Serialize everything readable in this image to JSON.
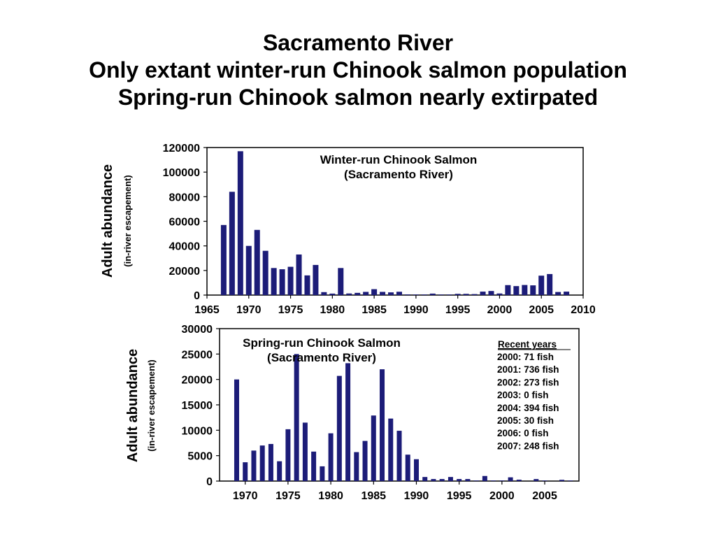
{
  "title_lines": [
    "Sacramento River",
    "Only extant winter-run Chinook salmon population",
    "Spring-run Chinook salmon nearly extirpated"
  ],
  "colors": {
    "bar": "#1c1c78",
    "axis": "#000000"
  },
  "chart_data": [
    {
      "type": "bar",
      "title_lines": [
        "Winter-run Chinook Salmon",
        "(Sacramento River)"
      ],
      "ylabel": "Adult abundance",
      "ylabel_sub": "(in-river escapement)",
      "xlabel": "",
      "xlim": [
        1965,
        2010
      ],
      "ylim": [
        0,
        120000
      ],
      "x_ticks": [
        1965,
        1970,
        1975,
        1980,
        1985,
        1990,
        1995,
        2000,
        2005,
        2010
      ],
      "y_ticks": [
        0,
        20000,
        40000,
        60000,
        80000,
        100000,
        120000
      ],
      "grid": false,
      "series": [
        {
          "x": [
            1967,
            1968,
            1969,
            1970,
            1971,
            1972,
            1973,
            1974,
            1975,
            1976,
            1977,
            1978,
            1979,
            1980,
            1981,
            1982,
            1983,
            1984,
            1985,
            1986,
            1987,
            1988,
            1989,
            1990,
            1991,
            1992,
            1993,
            1994,
            1995,
            1996,
            1997,
            1998,
            1999,
            2000,
            2001,
            2002,
            2003,
            2004,
            2005,
            2006,
            2007,
            2008
          ],
          "values": [
            57000,
            84000,
            117000,
            40000,
            53000,
            36000,
            22000,
            21000,
            23000,
            33000,
            16000,
            24500,
            2400,
            1200,
            22000,
            1300,
            1800,
            2600,
            4800,
            2600,
            2200,
            2700,
            550,
            450,
            200,
            1200,
            300,
            200,
            1000,
            1000,
            800,
            2800,
            3300,
            1300,
            8100,
            7300,
            8200,
            7900,
            15800,
            17100,
            2500,
            2800
          ]
        }
      ]
    },
    {
      "type": "bar",
      "title_lines": [
        "Spring-run Chinook Salmon",
        "(Sacramento River)"
      ],
      "ylabel": "Adult abundance",
      "ylabel_sub": "(in-river escapement)",
      "xlabel": "",
      "xlim": [
        1967,
        2009
      ],
      "ylim": [
        0,
        30000
      ],
      "x_ticks": [
        1970,
        1975,
        1980,
        1985,
        1990,
        1995,
        2000,
        2005
      ],
      "y_ticks": [
        0,
        5000,
        10000,
        15000,
        20000,
        25000,
        30000
      ],
      "grid": false,
      "annotation": {
        "heading": "Recent years",
        "lines": [
          "2000: 71 fish",
          "2001: 736 fish",
          "2002: 273 fish",
          "2003: 0 fish",
          "2004: 394 fish",
          "2005: 30 fish",
          "2006: 0 fish",
          "2007: 248 fish"
        ]
      },
      "series": [
        {
          "x": [
            1969,
            1970,
            1971,
            1972,
            1973,
            1974,
            1975,
            1976,
            1977,
            1978,
            1979,
            1980,
            1981,
            1982,
            1983,
            1984,
            1985,
            1986,
            1987,
            1988,
            1989,
            1990,
            1991,
            1992,
            1993,
            1994,
            1995,
            1996,
            1997,
            1998,
            1999,
            2000,
            2001,
            2002,
            2003,
            2004,
            2005,
            2006,
            2007,
            2008
          ],
          "values": [
            20000,
            3700,
            6000,
            7000,
            7300,
            3900,
            10200,
            25000,
            11500,
            5800,
            2900,
            9400,
            20700,
            23200,
            5700,
            7900,
            12900,
            22000,
            12300,
            9900,
            5200,
            4300,
            800,
            400,
            400,
            800,
            400,
            400,
            100,
            1000,
            100,
            71,
            736,
            273,
            0,
            394,
            30,
            0,
            248,
            100
          ]
        }
      ]
    }
  ]
}
